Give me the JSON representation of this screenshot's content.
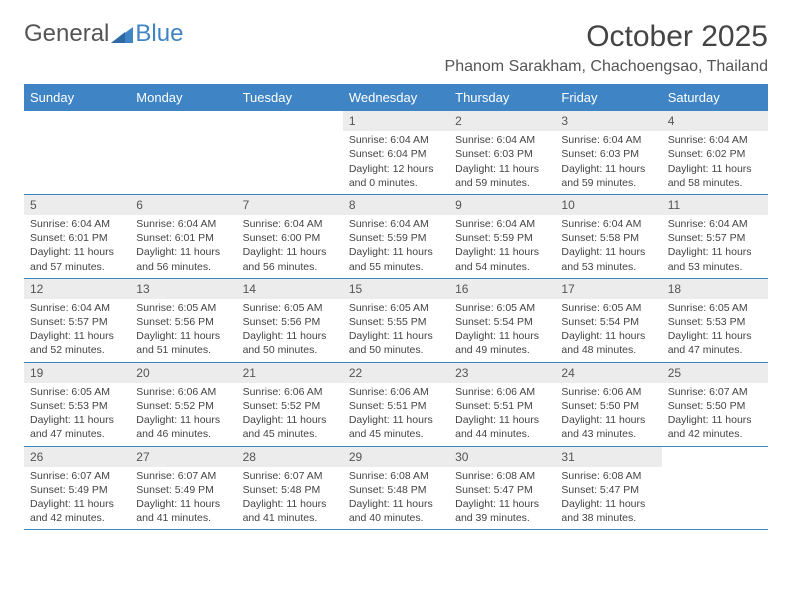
{
  "logo": {
    "text1": "General",
    "text2": "Blue"
  },
  "title": "October 2025",
  "location": "Phanom Sarakham, Chachoengsao, Thailand",
  "colors": {
    "header_bg": "#3f85c6",
    "header_text": "#ffffff",
    "daynum_bg": "#ececec",
    "body_text": "#444444",
    "rule": "#3f85c6"
  },
  "day_names": [
    "Sunday",
    "Monday",
    "Tuesday",
    "Wednesday",
    "Thursday",
    "Friday",
    "Saturday"
  ],
  "weeks": [
    [
      null,
      null,
      null,
      {
        "d": "1",
        "sr": "6:04 AM",
        "ss": "6:04 PM",
        "dl1": "12 hours",
        "dl2": "and 0 minutes."
      },
      {
        "d": "2",
        "sr": "6:04 AM",
        "ss": "6:03 PM",
        "dl1": "11 hours",
        "dl2": "and 59 minutes."
      },
      {
        "d": "3",
        "sr": "6:04 AM",
        "ss": "6:03 PM",
        "dl1": "11 hours",
        "dl2": "and 59 minutes."
      },
      {
        "d": "4",
        "sr": "6:04 AM",
        "ss": "6:02 PM",
        "dl1": "11 hours",
        "dl2": "and 58 minutes."
      }
    ],
    [
      {
        "d": "5",
        "sr": "6:04 AM",
        "ss": "6:01 PM",
        "dl1": "11 hours",
        "dl2": "and 57 minutes."
      },
      {
        "d": "6",
        "sr": "6:04 AM",
        "ss": "6:01 PM",
        "dl1": "11 hours",
        "dl2": "and 56 minutes."
      },
      {
        "d": "7",
        "sr": "6:04 AM",
        "ss": "6:00 PM",
        "dl1": "11 hours",
        "dl2": "and 56 minutes."
      },
      {
        "d": "8",
        "sr": "6:04 AM",
        "ss": "5:59 PM",
        "dl1": "11 hours",
        "dl2": "and 55 minutes."
      },
      {
        "d": "9",
        "sr": "6:04 AM",
        "ss": "5:59 PM",
        "dl1": "11 hours",
        "dl2": "and 54 minutes."
      },
      {
        "d": "10",
        "sr": "6:04 AM",
        "ss": "5:58 PM",
        "dl1": "11 hours",
        "dl2": "and 53 minutes."
      },
      {
        "d": "11",
        "sr": "6:04 AM",
        "ss": "5:57 PM",
        "dl1": "11 hours",
        "dl2": "and 53 minutes."
      }
    ],
    [
      {
        "d": "12",
        "sr": "6:04 AM",
        "ss": "5:57 PM",
        "dl1": "11 hours",
        "dl2": "and 52 minutes."
      },
      {
        "d": "13",
        "sr": "6:05 AM",
        "ss": "5:56 PM",
        "dl1": "11 hours",
        "dl2": "and 51 minutes."
      },
      {
        "d": "14",
        "sr": "6:05 AM",
        "ss": "5:56 PM",
        "dl1": "11 hours",
        "dl2": "and 50 minutes."
      },
      {
        "d": "15",
        "sr": "6:05 AM",
        "ss": "5:55 PM",
        "dl1": "11 hours",
        "dl2": "and 50 minutes."
      },
      {
        "d": "16",
        "sr": "6:05 AM",
        "ss": "5:54 PM",
        "dl1": "11 hours",
        "dl2": "and 49 minutes."
      },
      {
        "d": "17",
        "sr": "6:05 AM",
        "ss": "5:54 PM",
        "dl1": "11 hours",
        "dl2": "and 48 minutes."
      },
      {
        "d": "18",
        "sr": "6:05 AM",
        "ss": "5:53 PM",
        "dl1": "11 hours",
        "dl2": "and 47 minutes."
      }
    ],
    [
      {
        "d": "19",
        "sr": "6:05 AM",
        "ss": "5:53 PM",
        "dl1": "11 hours",
        "dl2": "and 47 minutes."
      },
      {
        "d": "20",
        "sr": "6:06 AM",
        "ss": "5:52 PM",
        "dl1": "11 hours",
        "dl2": "and 46 minutes."
      },
      {
        "d": "21",
        "sr": "6:06 AM",
        "ss": "5:52 PM",
        "dl1": "11 hours",
        "dl2": "and 45 minutes."
      },
      {
        "d": "22",
        "sr": "6:06 AM",
        "ss": "5:51 PM",
        "dl1": "11 hours",
        "dl2": "and 45 minutes."
      },
      {
        "d": "23",
        "sr": "6:06 AM",
        "ss": "5:51 PM",
        "dl1": "11 hours",
        "dl2": "and 44 minutes."
      },
      {
        "d": "24",
        "sr": "6:06 AM",
        "ss": "5:50 PM",
        "dl1": "11 hours",
        "dl2": "and 43 minutes."
      },
      {
        "d": "25",
        "sr": "6:07 AM",
        "ss": "5:50 PM",
        "dl1": "11 hours",
        "dl2": "and 42 minutes."
      }
    ],
    [
      {
        "d": "26",
        "sr": "6:07 AM",
        "ss": "5:49 PM",
        "dl1": "11 hours",
        "dl2": "and 42 minutes."
      },
      {
        "d": "27",
        "sr": "6:07 AM",
        "ss": "5:49 PM",
        "dl1": "11 hours",
        "dl2": "and 41 minutes."
      },
      {
        "d": "28",
        "sr": "6:07 AM",
        "ss": "5:48 PM",
        "dl1": "11 hours",
        "dl2": "and 41 minutes."
      },
      {
        "d": "29",
        "sr": "6:08 AM",
        "ss": "5:48 PM",
        "dl1": "11 hours",
        "dl2": "and 40 minutes."
      },
      {
        "d": "30",
        "sr": "6:08 AM",
        "ss": "5:47 PM",
        "dl1": "11 hours",
        "dl2": "and 39 minutes."
      },
      {
        "d": "31",
        "sr": "6:08 AM",
        "ss": "5:47 PM",
        "dl1": "11 hours",
        "dl2": "and 38 minutes."
      },
      null
    ]
  ],
  "labels": {
    "sunrise": "Sunrise:",
    "sunset": "Sunset:",
    "daylight": "Daylight:"
  }
}
